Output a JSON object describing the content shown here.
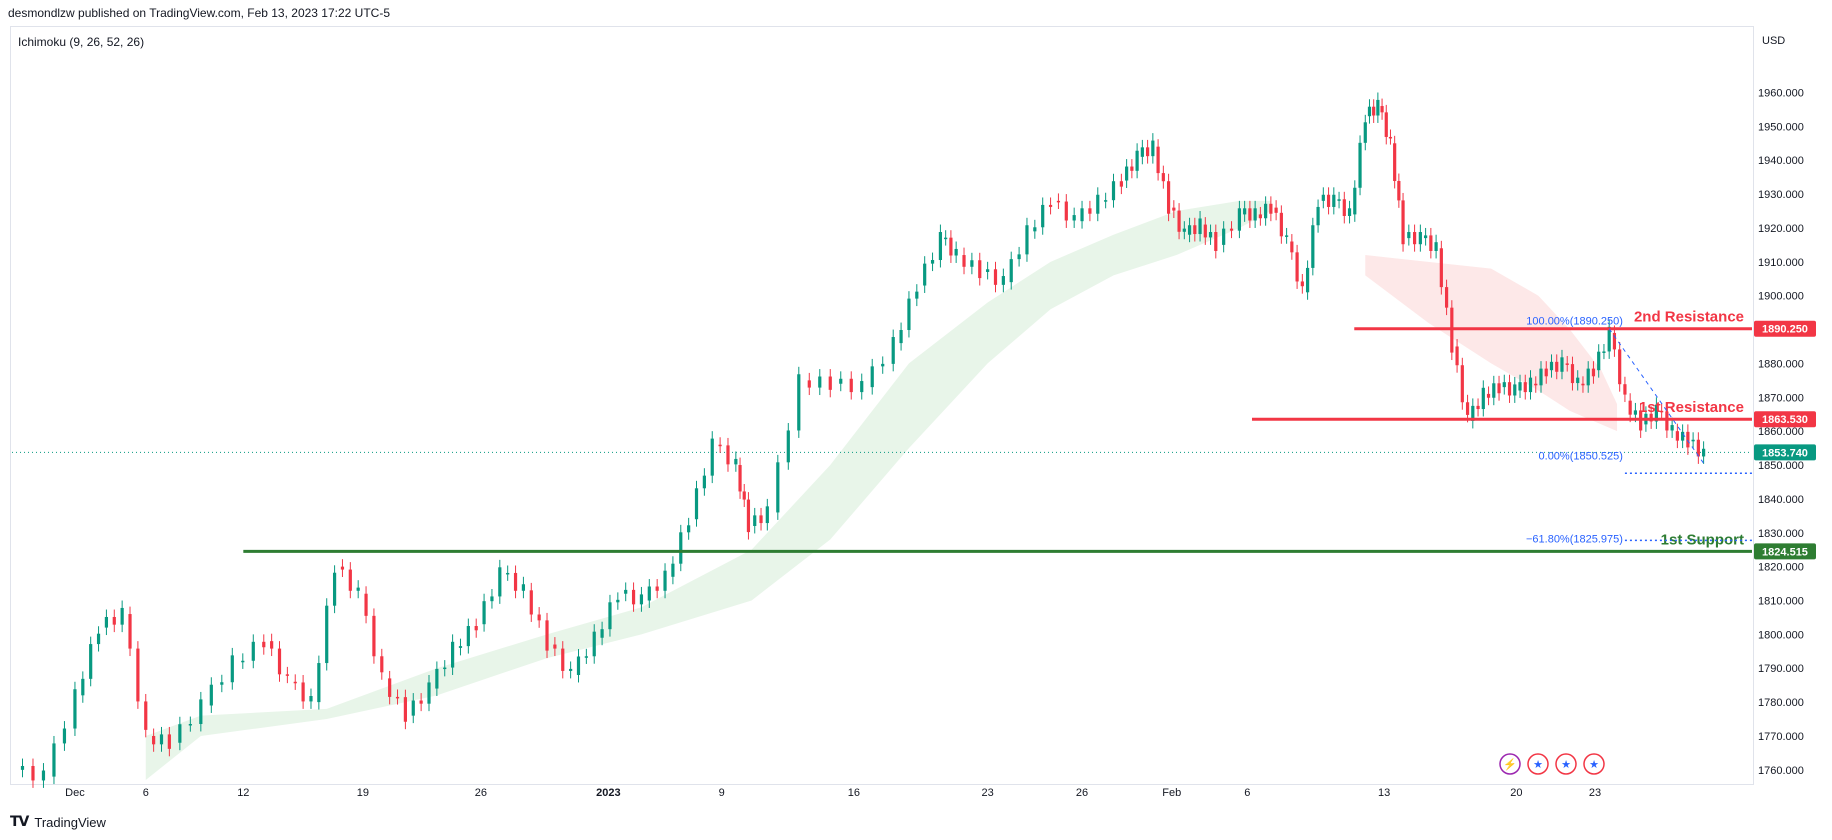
{
  "header": {
    "publisher": "desmondlzw published on TradingView.com, Feb 13, 2023 17:22 UTC-5"
  },
  "indicator": {
    "label": "Ichimoku (9, 26, 52, 26)"
  },
  "currency": "USD",
  "footer": {
    "brand": "TradingView"
  },
  "colors": {
    "bull": "#089981",
    "bear": "#f23645",
    "resistance": "#f23645",
    "support": "#2e7d32",
    "fib": "#2962ff",
    "cloud_bull": "#e8f5e9",
    "cloud_bear": "#fde8e8"
  },
  "chart_data": {
    "type": "candlestick",
    "symbol_unit": "USD",
    "y_ticks": [
      1760,
      1770,
      1780,
      1790,
      1800,
      1810,
      1820,
      1830,
      1840,
      1850,
      1860,
      1870,
      1880,
      1890,
      1900,
      1910,
      1920,
      1930,
      1940,
      1950,
      1960
    ],
    "ylim": [
      1757,
      1969
    ],
    "x_ticks": [
      {
        "label": "Dec",
        "pos": 0.04
      },
      {
        "label": "6",
        "pos": 0.085
      },
      {
        "label": "12",
        "pos": 0.147
      },
      {
        "label": "19",
        "pos": 0.223
      },
      {
        "label": "26",
        "pos": 0.298
      },
      {
        "label": "2023",
        "pos": 0.379,
        "bold": true
      },
      {
        "label": "9",
        "pos": 0.451
      },
      {
        "label": "16",
        "pos": 0.535
      },
      {
        "label": "23",
        "pos": 0.62
      },
      {
        "label": "26",
        "pos": 0.68
      },
      {
        "label": "Feb",
        "pos": 0.737
      },
      {
        "label": "6",
        "pos": 0.785
      },
      {
        "label": "13",
        "pos": 0.872
      },
      {
        "label": "20",
        "pos": 0.956
      },
      {
        "label": "23",
        "pos": 1.006
      }
    ],
    "price_path": [
      [
        0.0,
        1760
      ],
      [
        0.02,
        1758
      ],
      [
        0.04,
        1782
      ],
      [
        0.055,
        1802
      ],
      [
        0.07,
        1806
      ],
      [
        0.085,
        1770
      ],
      [
        0.1,
        1768
      ],
      [
        0.12,
        1779
      ],
      [
        0.14,
        1792
      ],
      [
        0.16,
        1798
      ],
      [
        0.175,
        1786
      ],
      [
        0.19,
        1780
      ],
      [
        0.205,
        1820
      ],
      [
        0.22,
        1812
      ],
      [
        0.235,
        1787
      ],
      [
        0.25,
        1776
      ],
      [
        0.265,
        1784
      ],
      [
        0.28,
        1796
      ],
      [
        0.295,
        1803
      ],
      [
        0.31,
        1818
      ],
      [
        0.325,
        1813
      ],
      [
        0.34,
        1797
      ],
      [
        0.355,
        1788
      ],
      [
        0.37,
        1799
      ],
      [
        0.385,
        1812
      ],
      [
        0.4,
        1810
      ],
      [
        0.415,
        1817
      ],
      [
        0.43,
        1834
      ],
      [
        0.445,
        1856
      ],
      [
        0.46,
        1850
      ],
      [
        0.468,
        1832
      ],
      [
        0.48,
        1836
      ],
      [
        0.5,
        1875
      ],
      [
        0.52,
        1874
      ],
      [
        0.54,
        1873
      ],
      [
        0.56,
        1886
      ],
      [
        0.575,
        1903
      ],
      [
        0.59,
        1917
      ],
      [
        0.6,
        1912
      ],
      [
        0.615,
        1907
      ],
      [
        0.63,
        1904
      ],
      [
        0.645,
        1919
      ],
      [
        0.66,
        1928
      ],
      [
        0.675,
        1922
      ],
      [
        0.69,
        1928
      ],
      [
        0.705,
        1934
      ],
      [
        0.715,
        1941
      ],
      [
        0.725,
        1944
      ],
      [
        0.735,
        1926
      ],
      [
        0.745,
        1918
      ],
      [
        0.755,
        1921
      ],
      [
        0.765,
        1915
      ],
      [
        0.78,
        1924
      ],
      [
        0.79,
        1924
      ],
      [
        0.8,
        1926
      ],
      [
        0.81,
        1916
      ],
      [
        0.82,
        1901
      ],
      [
        0.83,
        1928
      ],
      [
        0.84,
        1928
      ],
      [
        0.85,
        1924
      ],
      [
        0.86,
        1953
      ],
      [
        0.868,
        1956
      ],
      [
        0.876,
        1945
      ],
      [
        0.884,
        1917
      ],
      [
        0.895,
        1917
      ],
      [
        0.905,
        1914
      ],
      [
        0.915,
        1885
      ],
      [
        0.925,
        1863
      ],
      [
        0.935,
        1871
      ],
      [
        0.945,
        1873
      ],
      [
        0.955,
        1872
      ],
      [
        0.965,
        1874
      ],
      [
        0.975,
        1878
      ],
      [
        0.985,
        1880
      ],
      [
        0.995,
        1874
      ],
      [
        1.005,
        1878
      ],
      [
        1.015,
        1889
      ],
      [
        1.025,
        1869
      ],
      [
        1.035,
        1862
      ],
      [
        1.045,
        1866
      ],
      [
        1.055,
        1860
      ],
      [
        1.065,
        1857
      ],
      [
        1.075,
        1853
      ]
    ],
    "cloud": [
      {
        "color": "bull",
        "points": [
          [
            0.085,
            1770
          ],
          [
            0.12,
            1776
          ],
          [
            0.2,
            1778
          ],
          [
            0.27,
            1790
          ],
          [
            0.34,
            1800
          ],
          [
            0.4,
            1808
          ],
          [
            0.47,
            1825
          ],
          [
            0.52,
            1850
          ],
          [
            0.57,
            1880
          ],
          [
            0.62,
            1898
          ],
          [
            0.66,
            1910
          ],
          [
            0.7,
            1918
          ],
          [
            0.74,
            1925
          ],
          [
            0.78,
            1928
          ],
          [
            0.8,
            1928
          ]
        ],
        "lower": [
          [
            0.085,
            1757
          ],
          [
            0.12,
            1770
          ],
          [
            0.2,
            1775
          ],
          [
            0.27,
            1782
          ],
          [
            0.34,
            1793
          ],
          [
            0.4,
            1800
          ],
          [
            0.47,
            1810
          ],
          [
            0.52,
            1828
          ],
          [
            0.57,
            1855
          ],
          [
            0.62,
            1880
          ],
          [
            0.66,
            1896
          ],
          [
            0.7,
            1906
          ],
          [
            0.74,
            1912
          ],
          [
            0.78,
            1920
          ],
          [
            0.8,
            1925
          ]
        ]
      },
      {
        "color": "bear",
        "points": [
          [
            0.86,
            1912
          ],
          [
            0.9,
            1910
          ],
          [
            0.94,
            1908
          ],
          [
            0.97,
            1900
          ],
          [
            0.99,
            1890
          ],
          [
            1.01,
            1878
          ],
          [
            1.02,
            1868
          ]
        ],
        "lower": [
          [
            0.86,
            1906
          ],
          [
            0.9,
            1892
          ],
          [
            0.94,
            1880
          ],
          [
            0.97,
            1872
          ],
          [
            0.99,
            1866
          ],
          [
            1.01,
            1862
          ],
          [
            1.02,
            1860
          ]
        ]
      }
    ],
    "levels": [
      {
        "name": "2nd Resistance",
        "value": 1890.25,
        "label": "1890.250",
        "color": "resistance",
        "from": 0.853
      },
      {
        "name": "1st Resistance",
        "value": 1863.53,
        "label": "1863.530",
        "color": "resistance",
        "from": 0.788
      },
      {
        "name": "1st Support",
        "value": 1824.515,
        "label": "1824.515",
        "color": "support",
        "from": 0.147
      }
    ],
    "current_price": {
      "value": 1853.74,
      "label": "1853.740"
    },
    "fib": [
      {
        "label": "100.00%(1890.250)",
        "value": 1890.25
      },
      {
        "label": "0.00%(1850.525)",
        "value": 1850.525
      },
      {
        "label": "−61.80%(1825.975)",
        "value": 1825.975
      }
    ],
    "event_icons": [
      "lightning-icon",
      "us-flag-icon",
      "us-flag-icon",
      "us-flag-icon"
    ]
  }
}
